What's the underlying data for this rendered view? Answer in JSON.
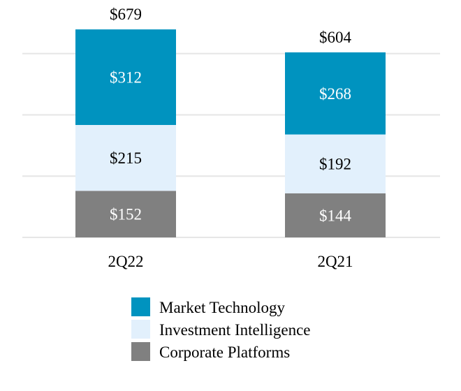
{
  "chart_data": {
    "type": "bar",
    "stacked": true,
    "title": "",
    "xlabel": "",
    "ylabel": "",
    "ylim": [
      0,
      775
    ],
    "gridlines": [
      200,
      400,
      600
    ],
    "grid": true,
    "legend_placement": "bottom",
    "categories": [
      "2Q22",
      "2Q21"
    ],
    "series": [
      {
        "name": "Corporate Platforms",
        "color": "#808080",
        "label_color": "#ffffff",
        "values": [
          152,
          144
        ],
        "labels": [
          "$152",
          "$144"
        ]
      },
      {
        "name": "Investment Intelligence",
        "color": "#E2F0FC",
        "label_color": "#000000",
        "values": [
          215,
          192
        ],
        "labels": [
          "$215",
          "$192"
        ]
      },
      {
        "name": "Market Technology",
        "color": "#0093BF",
        "label_color": "#ffffff",
        "values": [
          312,
          268
        ],
        "labels": [
          "$312",
          "$268"
        ]
      }
    ],
    "totals": [
      679,
      604
    ],
    "total_labels": [
      "$679",
      "$604"
    ],
    "legend": [
      "Market Technology",
      "Investment Intelligence",
      "Corporate Platforms"
    ]
  }
}
